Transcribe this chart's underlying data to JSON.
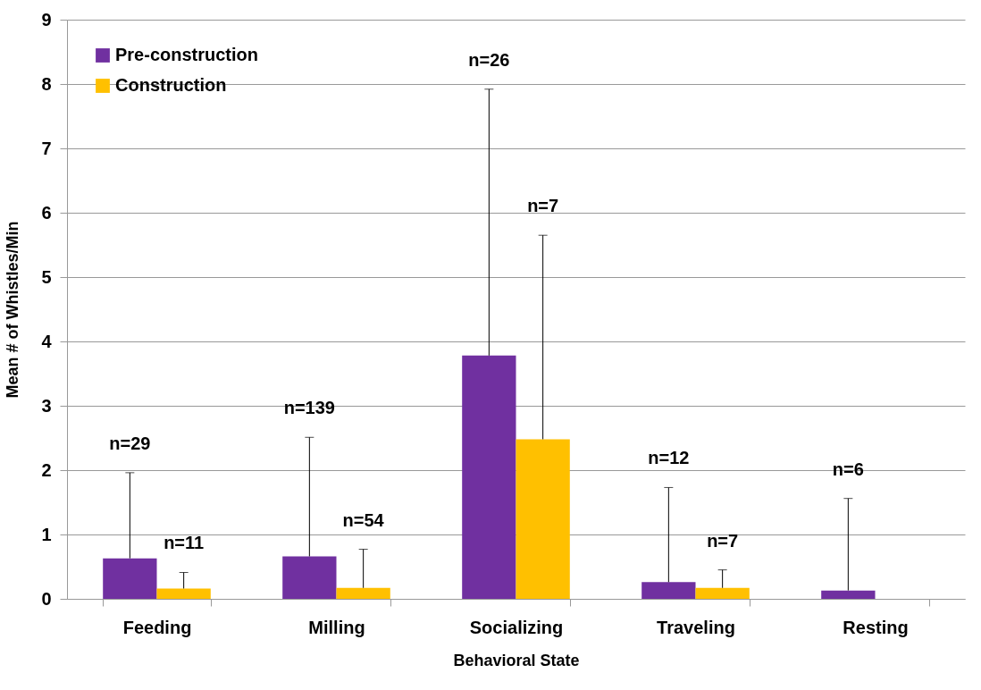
{
  "chart_data": {
    "type": "bar",
    "xlabel": "Behavioral State",
    "ylabel": "Mean # of Whistles/Min",
    "categories": [
      "Feeding",
      "Milling",
      "Socializing",
      "Traveling",
      "Resting"
    ],
    "series": [
      {
        "name": "Pre-construction",
        "color": "#7030a0",
        "values": [
          0.63,
          0.66,
          3.78,
          0.26,
          0.13
        ],
        "errors": [
          [
            0.63,
            1.96
          ],
          [
            0.66,
            2.51
          ],
          [
            3.78,
            7.92
          ],
          [
            0.26,
            1.73
          ],
          [
            0.13,
            1.56
          ]
        ]
      },
      {
        "name": "Construction",
        "color": "#ffc000",
        "values": [
          0.16,
          0.17,
          2.48,
          0.17,
          null
        ],
        "errors": [
          [
            0.16,
            0.41
          ],
          [
            0.17,
            0.77
          ],
          [
            2.48,
            5.65
          ],
          [
            0.17,
            0.45
          ],
          null
        ]
      }
    ],
    "annotations": [
      "n=29",
      "n=11",
      "n=139",
      "n=54",
      "n=26",
      "n=7",
      "n=12",
      "n=7",
      "n=6"
    ],
    "ylim": [
      0,
      9
    ],
    "yticks": [
      0,
      1,
      2,
      3,
      4,
      5,
      6,
      7,
      8,
      9
    ],
    "grid": "y",
    "legend": "top left"
  }
}
